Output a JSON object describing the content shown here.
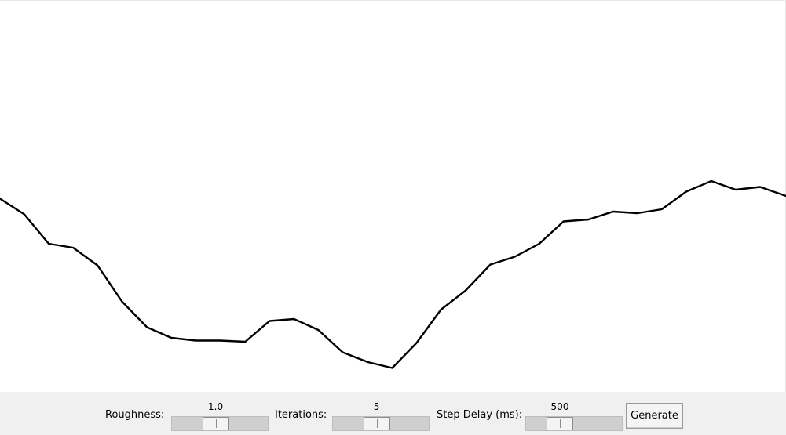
{
  "terrain": {
    "color": "#000000",
    "profile": [
      [
        0,
        0.505
      ],
      [
        0.031,
        0.545
      ],
      [
        0.062,
        0.62
      ],
      [
        0.093,
        0.63
      ],
      [
        0.124,
        0.675
      ],
      [
        0.155,
        0.767
      ],
      [
        0.187,
        0.833
      ],
      [
        0.218,
        0.86
      ],
      [
        0.249,
        0.867
      ],
      [
        0.28,
        0.867
      ],
      [
        0.312,
        0.87
      ],
      [
        0.343,
        0.817
      ],
      [
        0.374,
        0.812
      ],
      [
        0.405,
        0.84
      ],
      [
        0.436,
        0.897
      ],
      [
        0.468,
        0.922
      ],
      [
        0.499,
        0.937
      ],
      [
        0.53,
        0.873
      ],
      [
        0.561,
        0.788
      ],
      [
        0.592,
        0.74
      ],
      [
        0.624,
        0.673
      ],
      [
        0.655,
        0.653
      ],
      [
        0.686,
        0.62
      ],
      [
        0.717,
        0.563
      ],
      [
        0.749,
        0.558
      ],
      [
        0.78,
        0.538
      ],
      [
        0.811,
        0.542
      ],
      [
        0.842,
        0.532
      ],
      [
        0.873,
        0.487
      ],
      [
        0.905,
        0.46
      ],
      [
        0.936,
        0.482
      ],
      [
        0.967,
        0.475
      ],
      [
        1.0,
        0.498
      ]
    ]
  },
  "controls": {
    "roughness": {
      "label": "Roughness:",
      "value": "1.0",
      "level": 0.44
    },
    "iterations": {
      "label": "Iterations:",
      "value": "5",
      "level": 0.44
    },
    "step_delay": {
      "label": "Step Delay (ms):",
      "value": "500",
      "level": 0.3
    },
    "generate_label": "Generate"
  }
}
